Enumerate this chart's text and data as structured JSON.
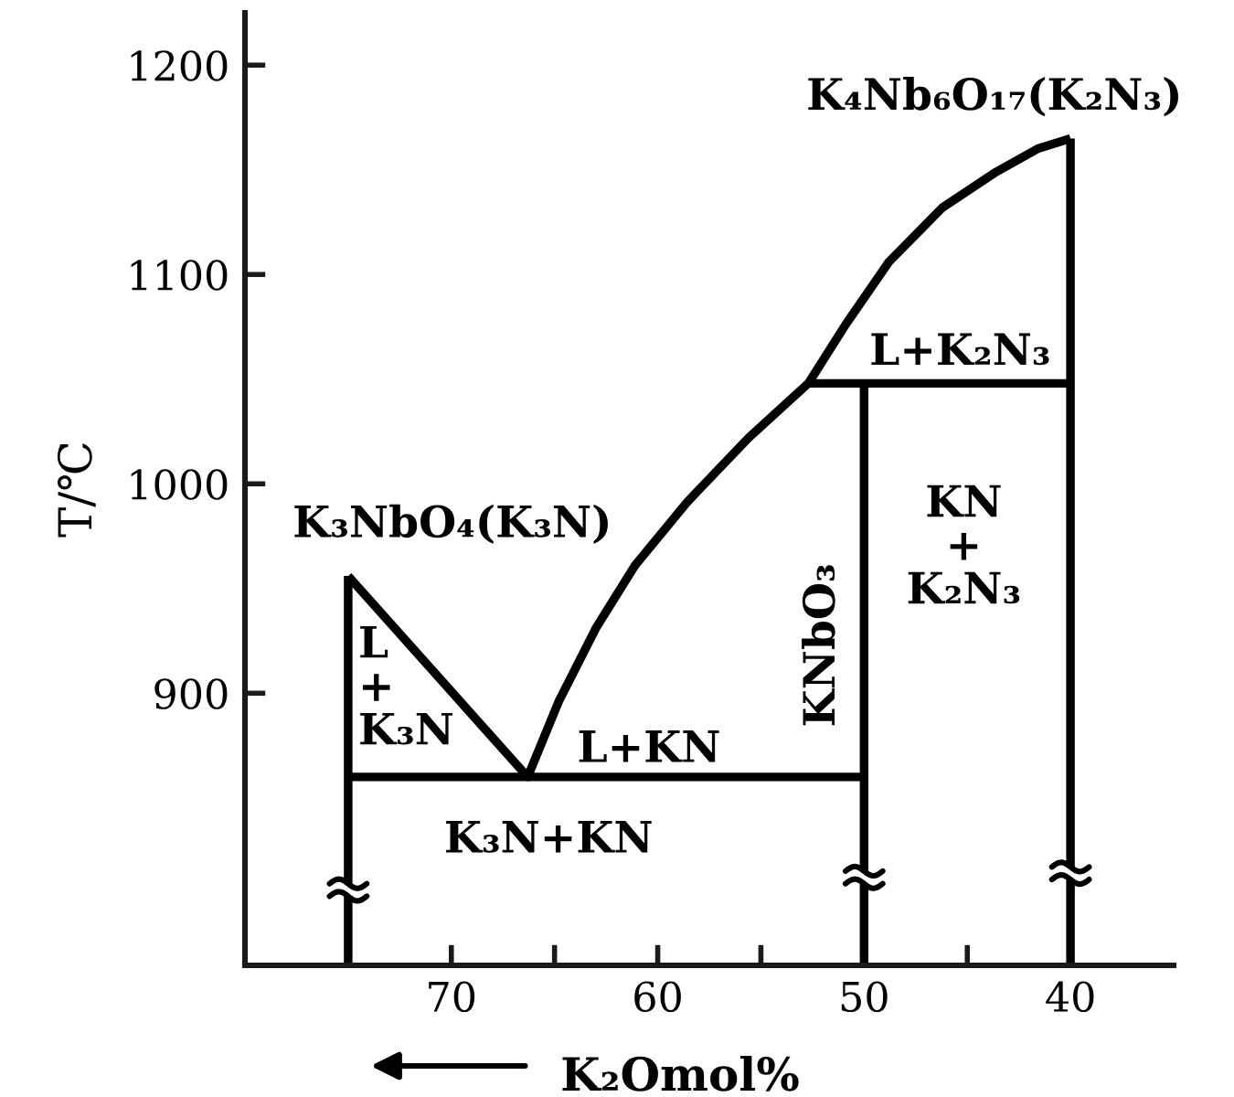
{
  "chart_data": {
    "type": "line",
    "xlabel": "K₂Omol%",
    "ylabel": "T/℃",
    "line_style": "solid",
    "xlim": [
      80,
      35
    ],
    "ylim": [
      770,
      1225
    ],
    "xticks": [
      70,
      {
        "value": 65,
        "label": null
      },
      60,
      {
        "value": 55,
        "label": null
      },
      50,
      {
        "value": 45,
        "label": null
      },
      40
    ],
    "yticks": [
      900,
      1000,
      1100,
      1200
    ],
    "series": [
      {
        "color": "#000000",
        "x": [
          75,
          66.3,
          64.8,
          63.0,
          61.1,
          58.6,
          55.6,
          52.7,
          50.9,
          48.8,
          46.2,
          43.6,
          41.6,
          40
        ],
        "values": [
          956,
          860,
          896,
          931,
          961,
          991,
          1022,
          1048,
          1076,
          1106,
          1132,
          1149,
          1160,
          1165
        ]
      },
      {
        "color": "#000000",
        "x": [
          75,
          50
        ],
        "values": [
          860,
          860
        ]
      },
      {
        "color": "#000000",
        "x": [
          52.7,
          40
        ],
        "values": [
          1048,
          1048
        ]
      },
      {
        "color": "#000000",
        "x": [
          75,
          75
        ],
        "values": [
          770,
          803
        ]
      },
      {
        "color": "#000000",
        "x": [
          75,
          75
        ],
        "values": [
          809,
          956
        ]
      },
      {
        "color": "#000000",
        "x": [
          50,
          50
        ],
        "values": [
          770,
          809
        ]
      },
      {
        "color": "#000000",
        "x": [
          50,
          50
        ],
        "values": [
          815,
          1048
        ]
      },
      {
        "color": "#000000",
        "x": [
          40,
          40
        ],
        "values": [
          770,
          811
        ]
      },
      {
        "color": "#000000",
        "x": [
          40,
          40
        ],
        "values": [
          817,
          1165
        ]
      }
    ],
    "annotations": [
      {
        "text": "K₃NbO₄(K₃N)",
        "x": 75,
        "y": 956
      },
      {
        "text": "K₄Nb₆O₁₇(K₂N₃)",
        "x": 40,
        "y": 1165
      },
      "L+K₂N₃",
      "KN\n+\nK₂N₃",
      "KNbO₃",
      "L\n+\nK₃N",
      "L+KN",
      "K₃N+KN"
    ]
  }
}
